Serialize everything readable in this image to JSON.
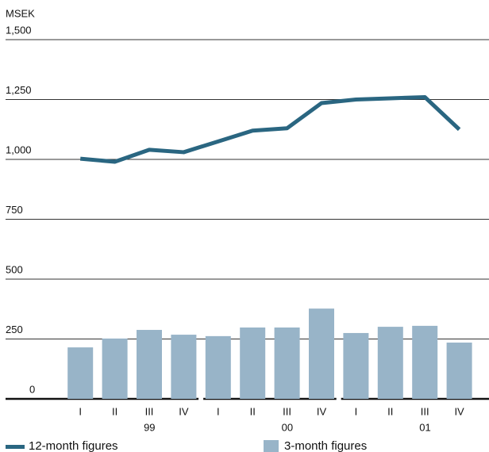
{
  "chart_data": {
    "type": "combo",
    "y_axis_label": "MSEK",
    "categories": [
      "I",
      "II",
      "III",
      "IV",
      "I",
      "II",
      "III",
      "IV",
      "I",
      "II",
      "III",
      "IV"
    ],
    "x_groups": [
      "99",
      "00",
      "01"
    ],
    "series": [
      {
        "name": "12-month figures",
        "type": "line",
        "color": "#2a6681",
        "values": [
          1003,
          990,
          1040,
          1030,
          1075,
          1120,
          1130,
          1235,
          1250,
          1255,
          1260,
          1125
        ]
      },
      {
        "name": "3-month figures",
        "type": "bar",
        "color": "#98b4c8",
        "values": [
          215,
          252,
          288,
          268,
          262,
          298,
          298,
          377,
          275,
          301,
          305,
          235
        ]
      }
    ],
    "ylim": [
      0,
      1500
    ],
    "yticks": [
      0,
      250,
      500,
      750,
      {
        "value": 1000,
        "label": "1,000"
      },
      {
        "value": 1250,
        "label": "1,250"
      },
      {
        "value": 1500,
        "label": "1,500"
      }
    ],
    "grid": true
  }
}
